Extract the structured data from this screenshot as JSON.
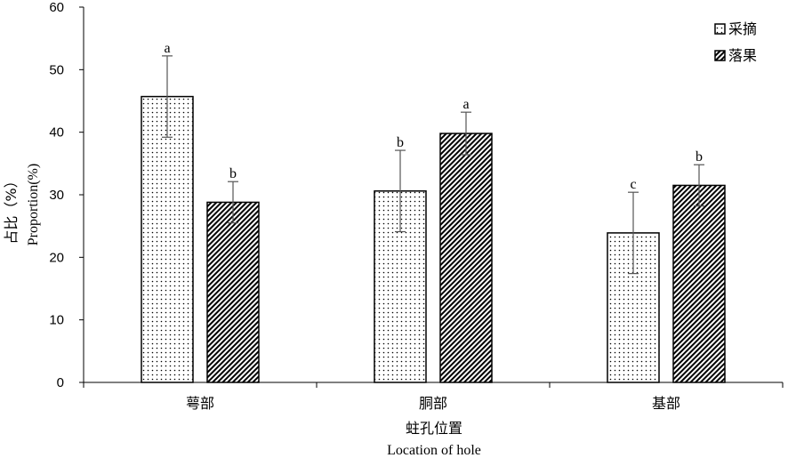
{
  "chart_data": {
    "type": "bar",
    "categories": [
      "萼部",
      "胴部",
      "基部"
    ],
    "series": [
      {
        "name": "采摘",
        "values": [
          45.7,
          30.6,
          23.9
        ],
        "errors": [
          6.5,
          6.5,
          6.5
        ],
        "significance": [
          "a",
          "b",
          "c"
        ],
        "pattern": "dots"
      },
      {
        "name": "落果",
        "values": [
          28.8,
          39.8,
          31.5
        ],
        "errors": [
          3.3,
          3.4,
          3.3
        ],
        "significance": [
          "b",
          "a",
          "b"
        ],
        "pattern": "diagonal"
      }
    ],
    "ylabel_cn": "占比（%）",
    "ylabel_en": "Proportion(%)",
    "xlabel_cn": "蛀孔位置",
    "xlabel_en": "Location of hole",
    "ylim": [
      0,
      60
    ],
    "yticks": [
      0,
      10,
      20,
      30,
      40,
      50,
      60
    ],
    "legend_position": "top-right",
    "grid": false
  }
}
